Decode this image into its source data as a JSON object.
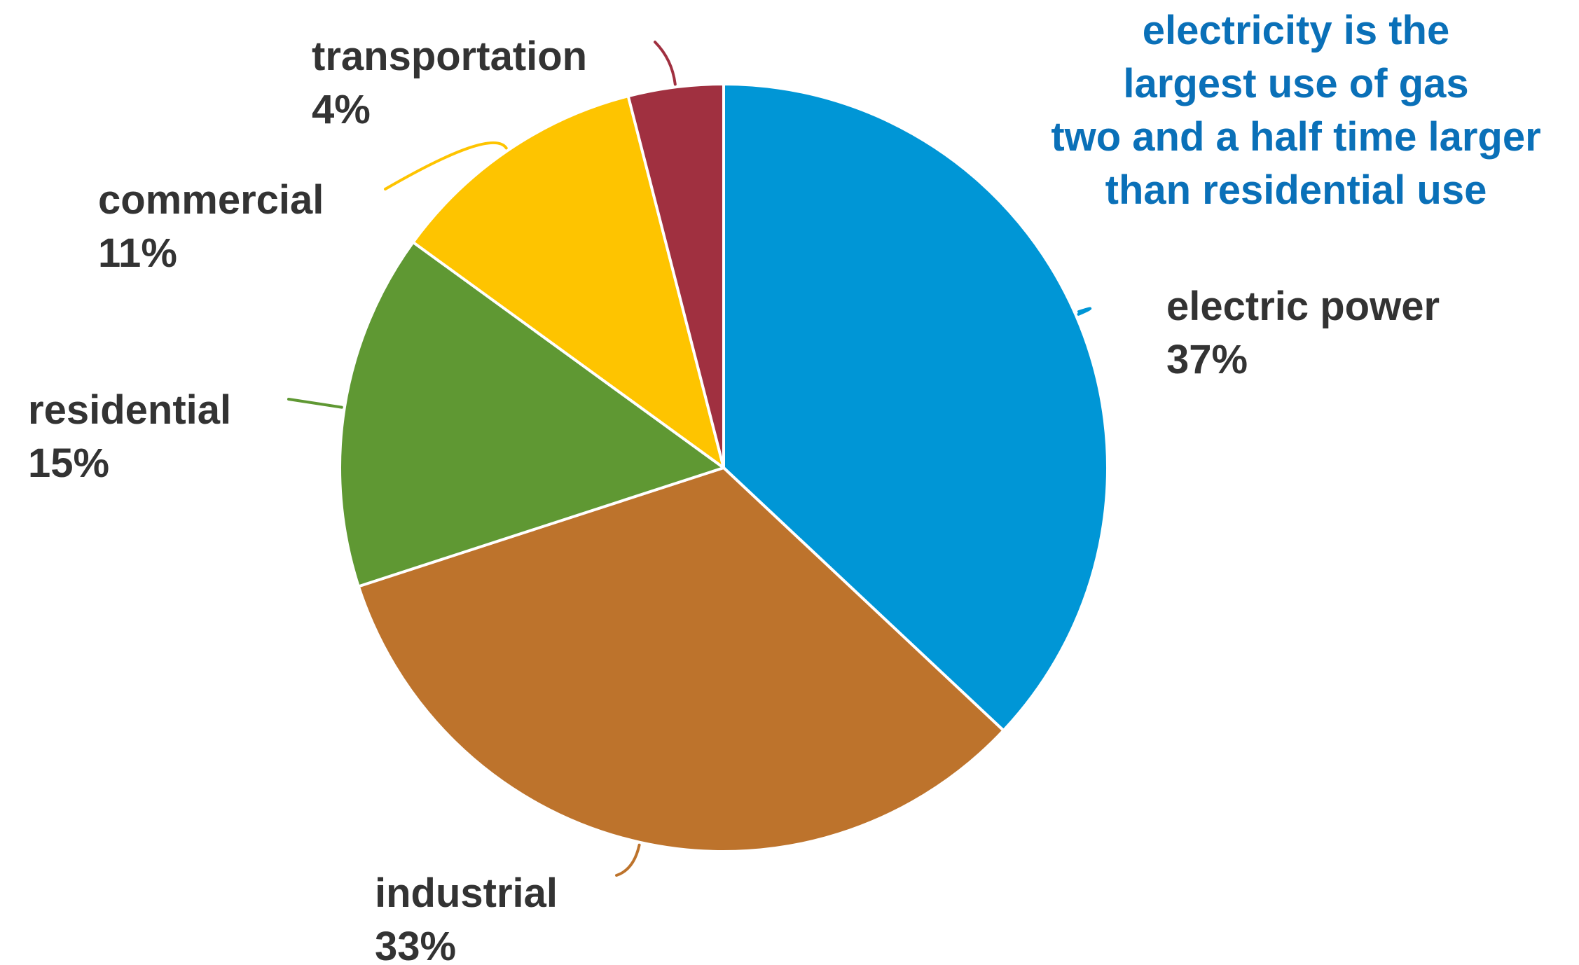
{
  "chart_data": {
    "type": "pie",
    "title": "",
    "start_angle_deg": 0,
    "direction": "clockwise",
    "slices": [
      {
        "name": "electric power",
        "label": "37%",
        "value": 37,
        "color": "#0096d6"
      },
      {
        "name": "industrial",
        "label": "33%",
        "value": 33,
        "color": "#bd732c"
      },
      {
        "name": "residential",
        "label": "15%",
        "value": 15,
        "color": "#5f9833"
      },
      {
        "name": "commercial",
        "label": "11%",
        "value": 11,
        "color": "#fec400"
      },
      {
        "name": "transportation",
        "label": "4%",
        "value": 4,
        "color": "#a03040"
      }
    ],
    "annotation": {
      "lines": [
        "electricity is the",
        "largest use of gas",
        "two and a half time larger",
        "than residential use"
      ],
      "color": "#0a70b8"
    }
  }
}
